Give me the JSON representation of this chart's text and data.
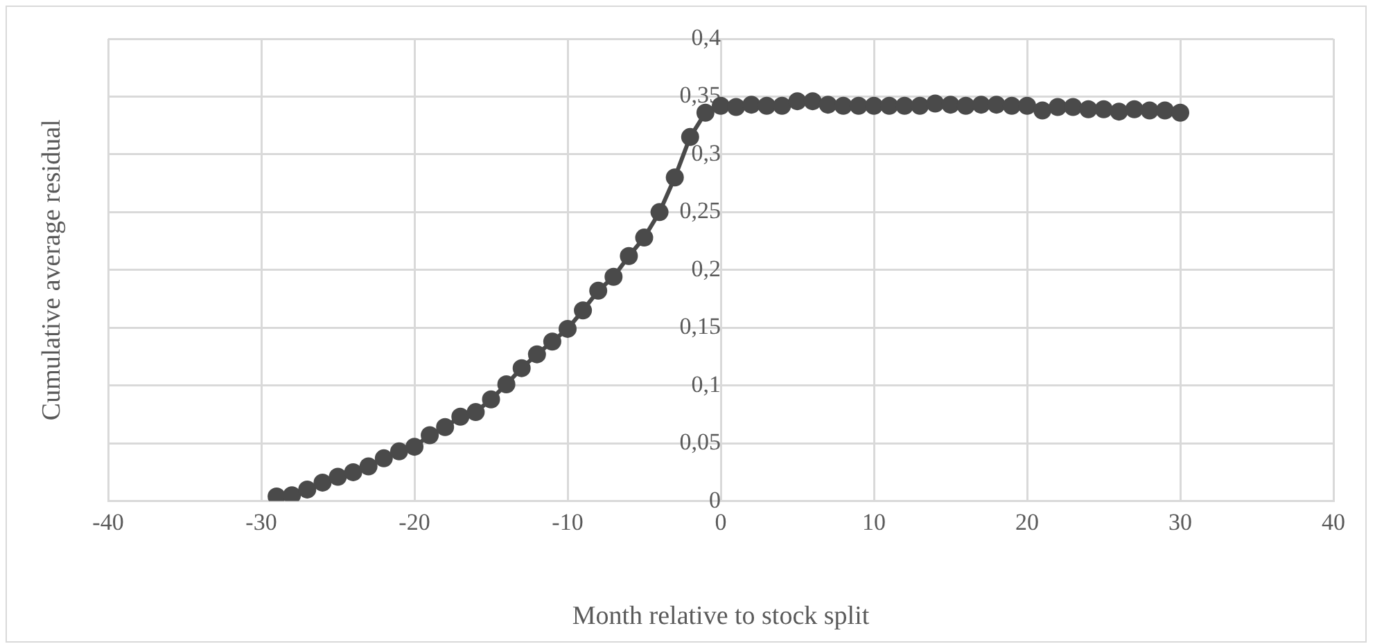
{
  "chart_data": {
    "type": "line",
    "xlabel": "Month relative to stock split",
    "ylabel": "Cumulative average residual",
    "x": [
      -29,
      -28,
      -27,
      -26,
      -25,
      -24,
      -23,
      -22,
      -21,
      -20,
      -19,
      -18,
      -17,
      -16,
      -15,
      -14,
      -13,
      -12,
      -11,
      -10,
      -9,
      -8,
      -7,
      -6,
      -5,
      -4,
      -3,
      -2,
      -1,
      0,
      1,
      2,
      3,
      4,
      5,
      6,
      7,
      8,
      9,
      10,
      11,
      12,
      13,
      14,
      15,
      16,
      17,
      18,
      19,
      20,
      21,
      22,
      23,
      24,
      25,
      26,
      27,
      28,
      29,
      30
    ],
    "series": [
      {
        "color": "#4a4a4a",
        "values": [
          0.004,
          0.005,
          0.01,
          0.016,
          0.021,
          0.025,
          0.03,
          0.037,
          0.043,
          0.047,
          0.057,
          0.064,
          0.073,
          0.077,
          0.088,
          0.101,
          0.115,
          0.127,
          0.138,
          0.149,
          0.165,
          0.182,
          0.194,
          0.212,
          0.228,
          0.25,
          0.28,
          0.315,
          0.336,
          0.342,
          0.341,
          0.343,
          0.342,
          0.342,
          0.346,
          0.346,
          0.343,
          0.342,
          0.342,
          0.342,
          0.342,
          0.342,
          0.342,
          0.344,
          0.343,
          0.342,
          0.343,
          0.343,
          0.342,
          0.342,
          0.338,
          0.341,
          0.341,
          0.339,
          0.339,
          0.337,
          0.339,
          0.338,
          0.338,
          0.336
        ]
      }
    ],
    "xlim": [
      -40,
      40
    ],
    "xticks": [
      -40,
      -30,
      -20,
      -10,
      0,
      10,
      20,
      30,
      40
    ],
    "ylim": [
      0,
      0.4
    ],
    "yticks": [
      0,
      {
        "value": 0.05,
        "label": "0,05"
      },
      {
        "value": 0.1,
        "label": "0,1"
      },
      {
        "value": 0.15,
        "label": "0,15"
      },
      {
        "value": 0.2,
        "label": "0,2"
      },
      {
        "value": 0.25,
        "label": "0,25"
      },
      {
        "value": 0.3,
        "label": "0,3"
      },
      {
        "value": 0.35,
        "label": "0,35"
      },
      {
        "value": 0.4,
        "label": "0,4"
      }
    ],
    "grid": true,
    "legend": false,
    "marker": "circle",
    "line_style": "solid"
  }
}
